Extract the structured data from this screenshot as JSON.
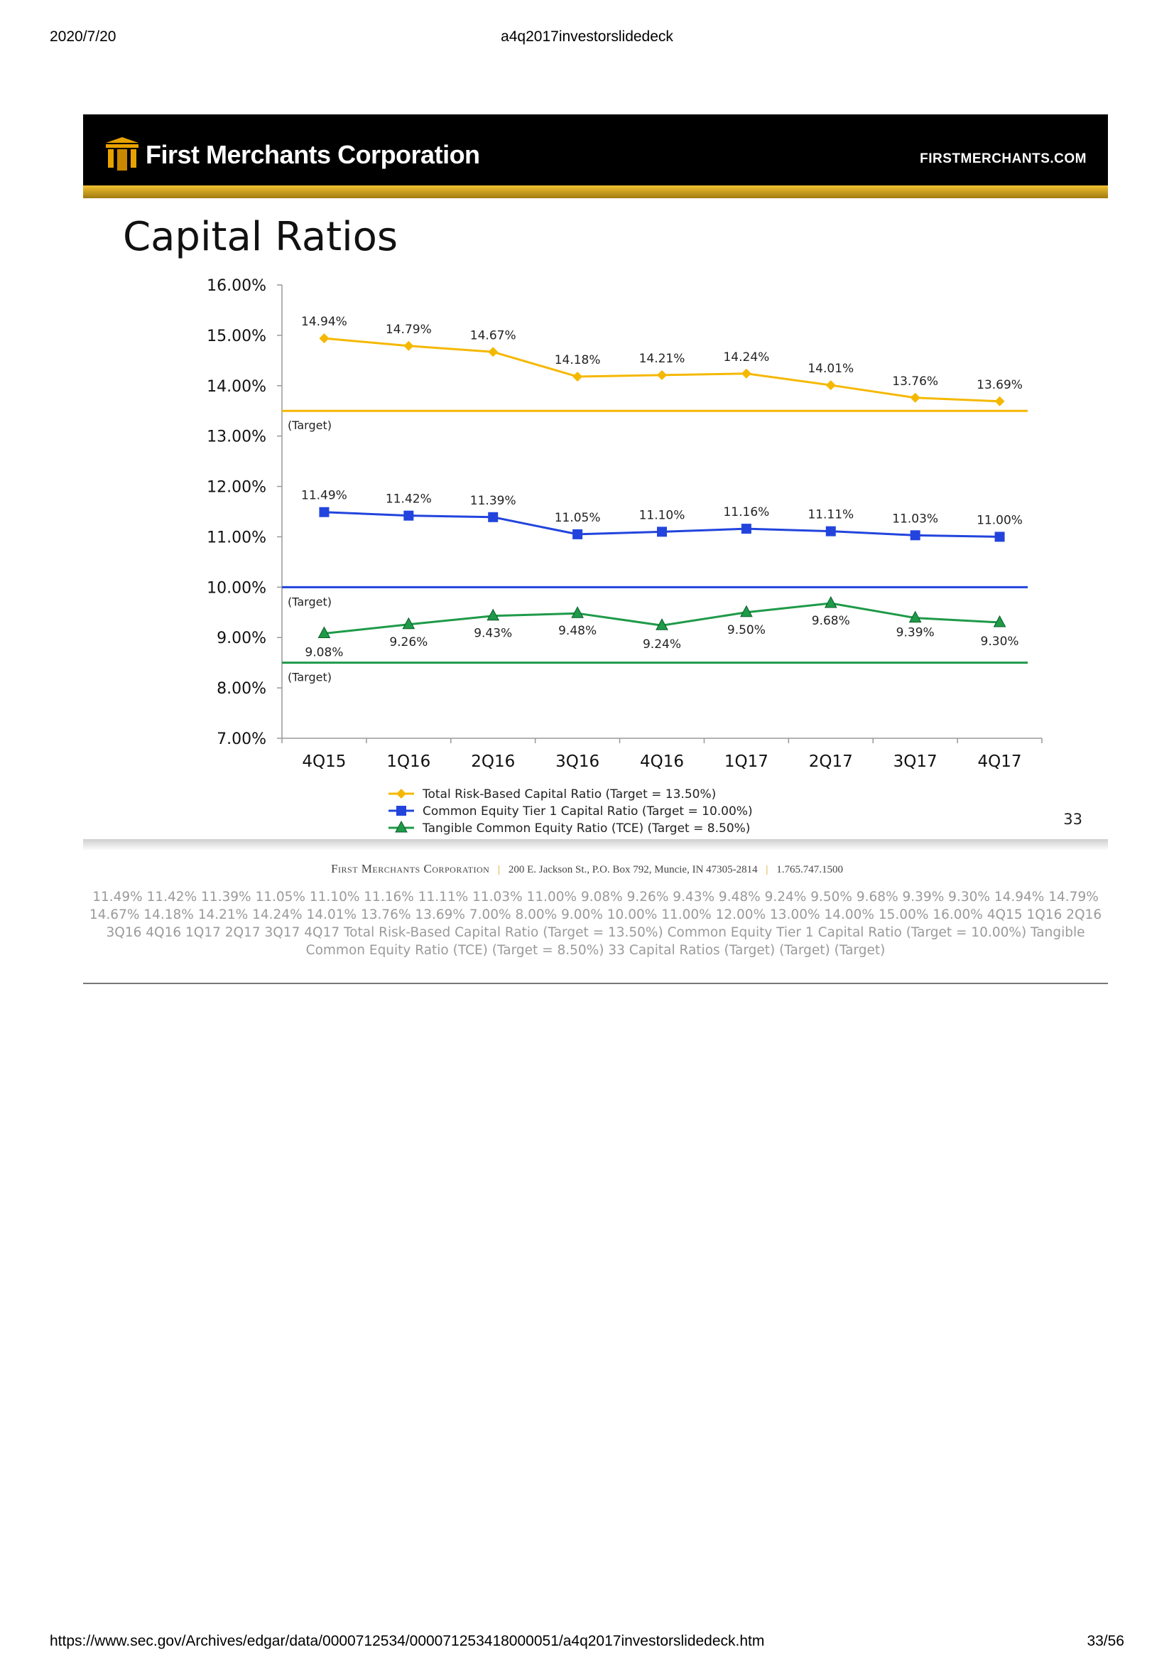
{
  "print_header": {
    "date": "2020/7/20",
    "doc_title": "a4q2017investorslidedeck"
  },
  "print_footer": {
    "url": "https://www.sec.gov/Archives/edgar/data/0000712534/000071253418000051/a4q2017investorslidedeck.htm",
    "page": "33/56"
  },
  "banner": {
    "company": "First Merchants Corporation",
    "site": "FIRSTMERCHANTS.COM"
  },
  "slide": {
    "title": "Capital Ratios",
    "number": "33"
  },
  "footer_address": {
    "company": "First Merchants Corporation",
    "address": "200 E. Jackson St., P.O. Box 792, Muncie, IN 47305-2814",
    "phone": "1.765.747.1500"
  },
  "alt_text": "11.49% 11.42% 11.39% 11.05% 11.10% 11.16% 11.11% 11.03% 11.00% 9.08% 9.26% 9.43% 9.48% 9.24% 9.50% 9.68% 9.39% 9.30% 14.94% 14.79% 14.67% 14.18% 14.21% 14.24% 14.01% 13.76% 13.69% 7.00% 8.00% 9.00% 10.00% 11.00% 12.00% 13.00% 14.00% 15.00% 16.00% 4Q15 1Q16 2Q16 3Q16 4Q16 1Q17 2Q17 3Q17 4Q17 Total Risk-Based Capital Ratio (Target = 13.50%)  Common Equity Tier 1 Capital Ratio (Target = 10.00%)  Tangible Common Equity Ratio (TCE) (Target = 8.50%) 33  Capital Ratios  (Target)  (Target)  (Target)",
  "chart_data": {
    "type": "line",
    "title": "Capital Ratios",
    "categories": [
      "4Q15",
      "1Q16",
      "2Q16",
      "3Q16",
      "4Q16",
      "1Q17",
      "2Q17",
      "3Q17",
      "4Q17"
    ],
    "ylim": [
      7,
      16
    ],
    "yticks": [
      "7.00%",
      "8.00%",
      "9.00%",
      "10.00%",
      "11.00%",
      "12.00%",
      "13.00%",
      "14.00%",
      "15.00%",
      "16.00%"
    ],
    "legend_position": "bottom",
    "series": [
      {
        "name": "Total Risk-Based Capital Ratio  (Target = 13.50%)",
        "color": "#f5b800",
        "marker": "diamond",
        "values": [
          14.94,
          14.79,
          14.67,
          14.18,
          14.21,
          14.24,
          14.01,
          13.76,
          13.69
        ],
        "labels": [
          "14.94%",
          "14.79%",
          "14.67%",
          "14.18%",
          "14.21%",
          "14.24%",
          "14.01%",
          "13.76%",
          "13.69%"
        ],
        "target": 13.5,
        "target_label": "(Target)"
      },
      {
        "name": "Common Equity Tier 1 Capital Ratio  (Target = 10.00%)",
        "color": "#2244dd",
        "marker": "square",
        "values": [
          11.49,
          11.42,
          11.39,
          11.05,
          11.1,
          11.16,
          11.11,
          11.03,
          11.0
        ],
        "labels": [
          "11.49%",
          "11.42%",
          "11.39%",
          "11.05%",
          "11.10%",
          "11.16%",
          "11.11%",
          "11.03%",
          "11.00%"
        ],
        "target": 10.0,
        "target_label": "(Target)"
      },
      {
        "name": "Tangible Common Equity Ratio  (TCE) (Target = 8.50%)",
        "color": "#1e9a48",
        "marker": "triangle",
        "values": [
          9.08,
          9.26,
          9.43,
          9.48,
          9.24,
          9.5,
          9.68,
          9.39,
          9.3
        ],
        "labels": [
          "9.08%",
          "9.26%",
          "9.43%",
          "9.48%",
          "9.24%",
          "9.50%",
          "9.68%",
          "9.39%",
          "9.30%"
        ],
        "target": 8.5,
        "target_label": "(Target)"
      }
    ]
  }
}
